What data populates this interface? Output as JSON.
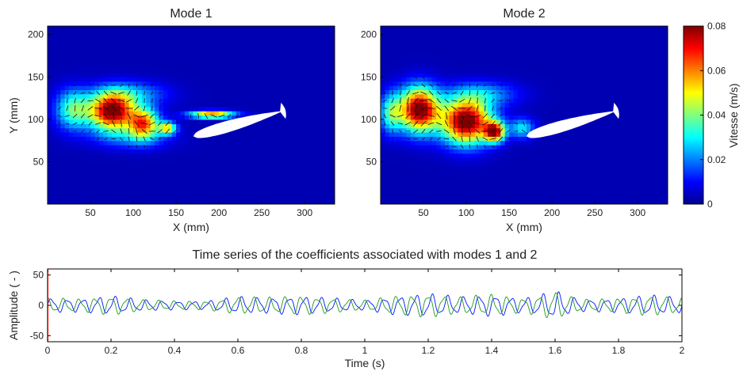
{
  "panels": [
    {
      "title": "Mode 1",
      "xlabel": "X (mm)",
      "ylabel": "Y (mm)",
      "xlim": [
        0,
        335
      ],
      "ylim": [
        0,
        210
      ],
      "xticks": [
        50,
        100,
        150,
        200,
        250,
        300
      ],
      "yticks": [
        50,
        100,
        150,
        200
      ],
      "blobs": [
        {
          "x": 30,
          "y": 112,
          "sx": 14,
          "sy": 16,
          "a": 0.034
        },
        {
          "x": 75,
          "y": 110,
          "sx": 18,
          "sy": 15,
          "a": 0.08
        },
        {
          "x": 112,
          "y": 96,
          "sx": 12,
          "sy": 12,
          "a": 0.056
        },
        {
          "x": 140,
          "y": 90,
          "sx": 7,
          "sy": 5,
          "a": 0.046
        },
        {
          "x": 192,
          "y": 106,
          "sx": 18,
          "sy": 3,
          "a": 0.06
        },
        {
          "x": 100,
          "y": 130,
          "sx": 28,
          "sy": 10,
          "a": 0.018
        },
        {
          "x": 100,
          "y": 80,
          "sx": 30,
          "sy": 10,
          "a": 0.014
        }
      ],
      "airfoil": {
        "x0": 170,
        "y0": 80,
        "x1": 275,
        "y1": 110,
        "thickness": 11
      }
    },
    {
      "title": "Mode 2",
      "xlabel": "X (mm)",
      "ylabel": "",
      "xlim": [
        0,
        335
      ],
      "ylim": [
        0,
        210
      ],
      "xticks": [
        50,
        100,
        150,
        200,
        250,
        300
      ],
      "yticks": [
        50,
        100,
        150,
        200
      ],
      "blobs": [
        {
          "x": 12,
          "y": 108,
          "sx": 9,
          "sy": 16,
          "a": 0.03
        },
        {
          "x": 45,
          "y": 112,
          "sx": 16,
          "sy": 18,
          "a": 0.08
        },
        {
          "x": 100,
          "y": 98,
          "sx": 20,
          "sy": 18,
          "a": 0.082
        },
        {
          "x": 133,
          "y": 86,
          "sx": 8,
          "sy": 8,
          "a": 0.07
        },
        {
          "x": 165,
          "y": 90,
          "sx": 10,
          "sy": 8,
          "a": 0.025
        },
        {
          "x": 120,
          "y": 130,
          "sx": 28,
          "sy": 10,
          "a": 0.018
        }
      ],
      "airfoil": {
        "x0": 170,
        "y0": 80,
        "x1": 275,
        "y1": 110,
        "thickness": 11
      }
    }
  ],
  "colorbar": {
    "label": "Vitesse (m/s)",
    "min": 0,
    "max": 0.08,
    "ticks": [
      {
        "v": 0,
        "label": "0"
      },
      {
        "v": 0.02,
        "label": "0.02"
      },
      {
        "v": 0.04,
        "label": "0.04"
      },
      {
        "v": 0.06,
        "label": "0.06"
      },
      {
        "v": 0.08,
        "label": "0.08"
      }
    ]
  },
  "chart_data": {
    "type": "line",
    "title": "Time series of the coefficients associated with modes 1 and 2",
    "xlabel": "Time (s)",
    "ylabel": "Amplitude ( - )",
    "xlim": [
      0,
      2
    ],
    "ylim": [
      -60,
      60
    ],
    "xticks": [
      {
        "v": 0,
        "label": "0"
      },
      {
        "v": 0.2,
        "label": "0.2"
      },
      {
        "v": 0.4,
        "label": "0.4"
      },
      {
        "v": 0.6,
        "label": "0.6"
      },
      {
        "v": 0.8,
        "label": "0.8"
      },
      {
        "v": 1,
        "label": "1"
      },
      {
        "v": 1.2,
        "label": "1.2"
      },
      {
        "v": 1.4,
        "label": "1.4"
      },
      {
        "v": 1.6,
        "label": "1.6"
      },
      {
        "v": 1.8,
        "label": "1.8"
      },
      {
        "v": 2,
        "label": "2"
      }
    ],
    "yticks": [
      {
        "v": -50,
        "label": "-50"
      },
      {
        "v": 0,
        "label": "0"
      },
      {
        "v": 50,
        "label": "50"
      }
    ],
    "frequency_hz": 20,
    "envelope": {
      "t": [
        0,
        0.1,
        0.2,
        0.3,
        0.4,
        0.5,
        0.6,
        0.7,
        0.8,
        0.9,
        1.0,
        1.1,
        1.2,
        1.3,
        1.4,
        1.5,
        1.55,
        1.6,
        1.65,
        1.7,
        1.8,
        1.9,
        2.0
      ],
      "amp": [
        10,
        9,
        13,
        8,
        6,
        6,
        12,
        11,
        13,
        10,
        7,
        13,
        16,
        12,
        15,
        10,
        14,
        20,
        12,
        8,
        10,
        14,
        11
      ]
    },
    "series": [
      {
        "color": "#0010ff",
        "phase": 0
      },
      {
        "color": "#1a9a1a",
        "phase": 1.5708
      }
    ]
  }
}
